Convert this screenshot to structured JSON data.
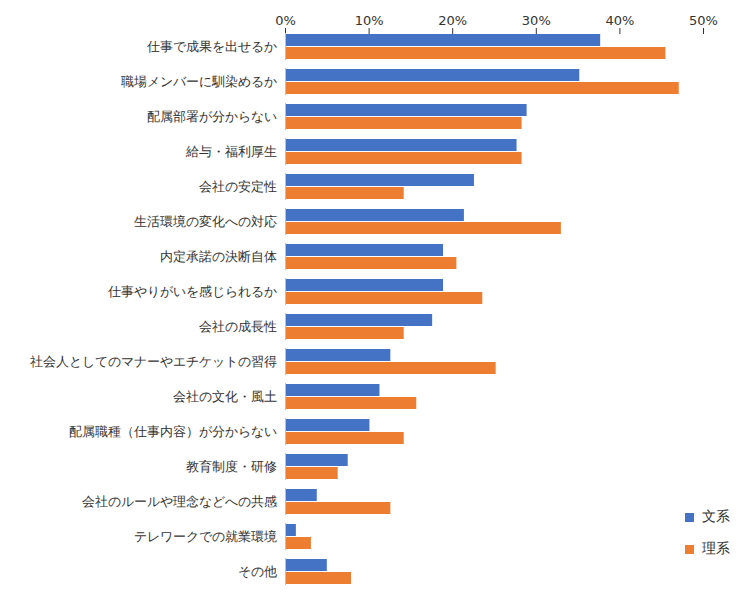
{
  "chart_data": {
    "type": "bar",
    "orientation": "horizontal",
    "categories": [
      "仕事で成果を出せるか",
      "職場メンバーに馴染めるか",
      "配属部署が分からない",
      "給与・福利厚生",
      "会社の安定性",
      "生活環境の変化への対応",
      "内定承諾の決断自体",
      "仕事やりがいを感じられるか",
      "会社の成長性",
      "社会人としてのマナーやエチケットの習得",
      "会社の文化・風土",
      "配属職種（仕事内容）が分からない",
      "教育制度・研修",
      "会社のルールや理念などへの共感",
      "テレワークでの就業環境",
      "その他"
    ],
    "series": [
      {
        "name": "文系",
        "color": "#4472c4",
        "values": [
          37.7,
          35.2,
          28.9,
          27.7,
          22.6,
          21.4,
          18.9,
          18.9,
          17.6,
          12.6,
          11.3,
          10.1,
          7.5,
          3.8,
          1.3,
          5.0
        ]
      },
      {
        "name": "理系",
        "color": "#ed7d31",
        "values": [
          45.5,
          47.1,
          28.3,
          28.3,
          14.2,
          33.0,
          20.5,
          23.6,
          14.2,
          25.2,
          15.7,
          14.2,
          6.3,
          12.6,
          3.1,
          7.9
        ]
      }
    ],
    "xlim": [
      0,
      50
    ],
    "xticks": [
      {
        "value": 0,
        "label": "0%"
      },
      {
        "value": 10,
        "label": "10%"
      },
      {
        "value": 20,
        "label": "20%"
      },
      {
        "value": 30,
        "label": "30%"
      },
      {
        "value": 40,
        "label": "40%"
      },
      {
        "value": 50,
        "label": "50%"
      }
    ],
    "grid": false,
    "legend": "lower right"
  }
}
